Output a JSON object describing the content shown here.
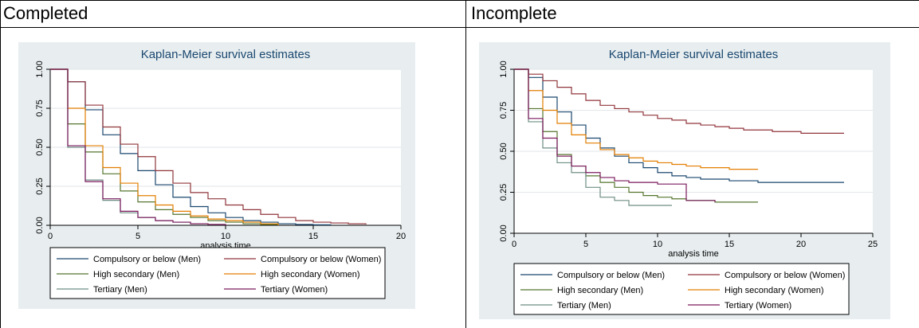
{
  "table": {
    "col_headers": [
      "Completed",
      "Incomplete"
    ]
  },
  "colors": {
    "panel_bg": "#e8eef0",
    "plot_bg": "#ffffff",
    "title": "#1a476f",
    "grid": "#e2e6e8"
  },
  "chart_data": [
    {
      "type": "line",
      "step": true,
      "title": "Kaplan-Meier survival estimates",
      "xlabel": "analysis time",
      "ylabel": "",
      "xlim": [
        0,
        20
      ],
      "ylim": [
        0,
        1
      ],
      "xticks": [
        0,
        5,
        10,
        15,
        20
      ],
      "yticks": [
        0.0,
        0.25,
        0.5,
        0.75,
        1.0
      ],
      "ytick_labels": [
        "0.00",
        "0.25",
        "0.50",
        "0.75",
        "1.00"
      ],
      "grid": true,
      "legend_position": "bottom",
      "series": [
        {
          "name": "Compulsory or below (Men)",
          "color": "#1a476f",
          "x": [
            0,
            1,
            2,
            3,
            4,
            5,
            6,
            7,
            8,
            9,
            10,
            11,
            12,
            13,
            14,
            15,
            16
          ],
          "y": [
            1.0,
            0.92,
            0.74,
            0.58,
            0.46,
            0.35,
            0.26,
            0.18,
            0.12,
            0.08,
            0.05,
            0.03,
            0.02,
            0.01,
            0.005,
            0.003,
            0.0
          ]
        },
        {
          "name": "Compulsory or below (Women)",
          "color": "#90353b",
          "x": [
            0,
            1,
            2,
            3,
            4,
            5,
            6,
            7,
            8,
            9,
            10,
            11,
            12,
            13,
            14,
            15,
            16,
            17,
            18
          ],
          "y": [
            1.0,
            0.92,
            0.77,
            0.63,
            0.52,
            0.44,
            0.35,
            0.27,
            0.21,
            0.17,
            0.13,
            0.1,
            0.07,
            0.05,
            0.03,
            0.02,
            0.015,
            0.01,
            0.005
          ]
        },
        {
          "name": "High secondary (Men)",
          "color": "#55752f",
          "x": [
            0,
            1,
            2,
            3,
            4,
            5,
            6,
            7,
            8,
            9,
            10,
            11,
            12,
            13
          ],
          "y": [
            1.0,
            0.65,
            0.47,
            0.33,
            0.22,
            0.15,
            0.1,
            0.07,
            0.05,
            0.03,
            0.02,
            0.01,
            0.005,
            0.0
          ]
        },
        {
          "name": "High secondary (Women)",
          "color": "#e37e00",
          "x": [
            0,
            1,
            2,
            3,
            4,
            5,
            6,
            7,
            8,
            9,
            10,
            11,
            12,
            13
          ],
          "y": [
            1.0,
            0.75,
            0.51,
            0.37,
            0.27,
            0.19,
            0.13,
            0.09,
            0.06,
            0.04,
            0.03,
            0.02,
            0.01,
            0.0
          ]
        },
        {
          "name": "Tertiary (Men)",
          "color": "#6e8e84",
          "x": [
            0,
            1,
            2,
            3,
            4,
            5,
            6,
            7,
            8,
            9,
            10
          ],
          "y": [
            1.0,
            0.5,
            0.29,
            0.16,
            0.08,
            0.05,
            0.03,
            0.02,
            0.01,
            0.005,
            0.0
          ]
        },
        {
          "name": "Tertiary (Women)",
          "color": "#7b1a5e",
          "x": [
            0,
            1,
            2,
            3,
            4,
            5,
            6,
            7,
            8,
            9,
            10
          ],
          "y": [
            1.0,
            0.51,
            0.28,
            0.17,
            0.09,
            0.05,
            0.03,
            0.02,
            0.01,
            0.005,
            0.0
          ]
        }
      ]
    },
    {
      "type": "line",
      "step": true,
      "title": "Kaplan-Meier survival estimates",
      "xlabel": "analysis time",
      "ylabel": "",
      "xlim": [
        0,
        25
      ],
      "ylim": [
        0,
        1
      ],
      "xticks": [
        0,
        5,
        10,
        15,
        20,
        25
      ],
      "yticks": [
        0.0,
        0.25,
        0.5,
        0.75,
        1.0
      ],
      "ytick_labels": [
        "0.00",
        "0.25",
        "0.50",
        "0.75",
        "1.00"
      ],
      "grid": true,
      "legend_position": "bottom",
      "series": [
        {
          "name": "Compulsory or below (Men)",
          "color": "#1a476f",
          "x": [
            0,
            1,
            2,
            3,
            4,
            5,
            6,
            7,
            8,
            9,
            10,
            11,
            12,
            13,
            14,
            15,
            16,
            17,
            23
          ],
          "y": [
            1.0,
            0.95,
            0.83,
            0.74,
            0.66,
            0.58,
            0.52,
            0.47,
            0.43,
            0.4,
            0.37,
            0.35,
            0.34,
            0.33,
            0.33,
            0.32,
            0.32,
            0.31,
            0.31
          ]
        },
        {
          "name": "Compulsory or below (Women)",
          "color": "#90353b",
          "x": [
            0,
            1,
            2,
            3,
            4,
            5,
            6,
            7,
            8,
            9,
            10,
            11,
            12,
            13,
            14,
            15,
            16,
            17,
            18,
            19,
            20,
            23
          ],
          "y": [
            1.0,
            0.97,
            0.93,
            0.89,
            0.85,
            0.81,
            0.78,
            0.76,
            0.74,
            0.72,
            0.7,
            0.69,
            0.67,
            0.66,
            0.65,
            0.64,
            0.63,
            0.63,
            0.62,
            0.62,
            0.61,
            0.61
          ]
        },
        {
          "name": "High secondary (Men)",
          "color": "#55752f",
          "x": [
            0,
            1,
            2,
            3,
            4,
            5,
            6,
            7,
            8,
            9,
            10,
            11,
            12,
            13,
            14,
            15,
            17
          ],
          "y": [
            1.0,
            0.76,
            0.62,
            0.48,
            0.41,
            0.35,
            0.31,
            0.28,
            0.25,
            0.23,
            0.22,
            0.21,
            0.2,
            0.2,
            0.19,
            0.19,
            0.19
          ]
        },
        {
          "name": "High secondary (Women)",
          "color": "#e37e00",
          "x": [
            0,
            1,
            2,
            3,
            4,
            5,
            6,
            7,
            8,
            9,
            10,
            11,
            12,
            13,
            14,
            15,
            16,
            17
          ],
          "y": [
            1.0,
            0.87,
            0.75,
            0.67,
            0.6,
            0.55,
            0.51,
            0.48,
            0.46,
            0.44,
            0.43,
            0.42,
            0.41,
            0.4,
            0.4,
            0.39,
            0.39,
            0.39
          ]
        },
        {
          "name": "Tertiary (Men)",
          "color": "#6e8e84",
          "x": [
            0,
            1,
            2,
            3,
            4,
            5,
            6,
            7,
            8,
            9,
            11
          ],
          "y": [
            1.0,
            0.68,
            0.52,
            0.43,
            0.37,
            0.28,
            0.22,
            0.2,
            0.17,
            0.17,
            0.17
          ]
        },
        {
          "name": "Tertiary (Women)",
          "color": "#7b1a5e",
          "x": [
            0,
            1,
            2,
            3,
            4,
            5,
            6,
            7,
            8,
            10,
            12,
            14
          ],
          "y": [
            1.0,
            0.7,
            0.58,
            0.47,
            0.41,
            0.37,
            0.34,
            0.32,
            0.31,
            0.3,
            0.2,
            0.19
          ]
        }
      ]
    }
  ]
}
